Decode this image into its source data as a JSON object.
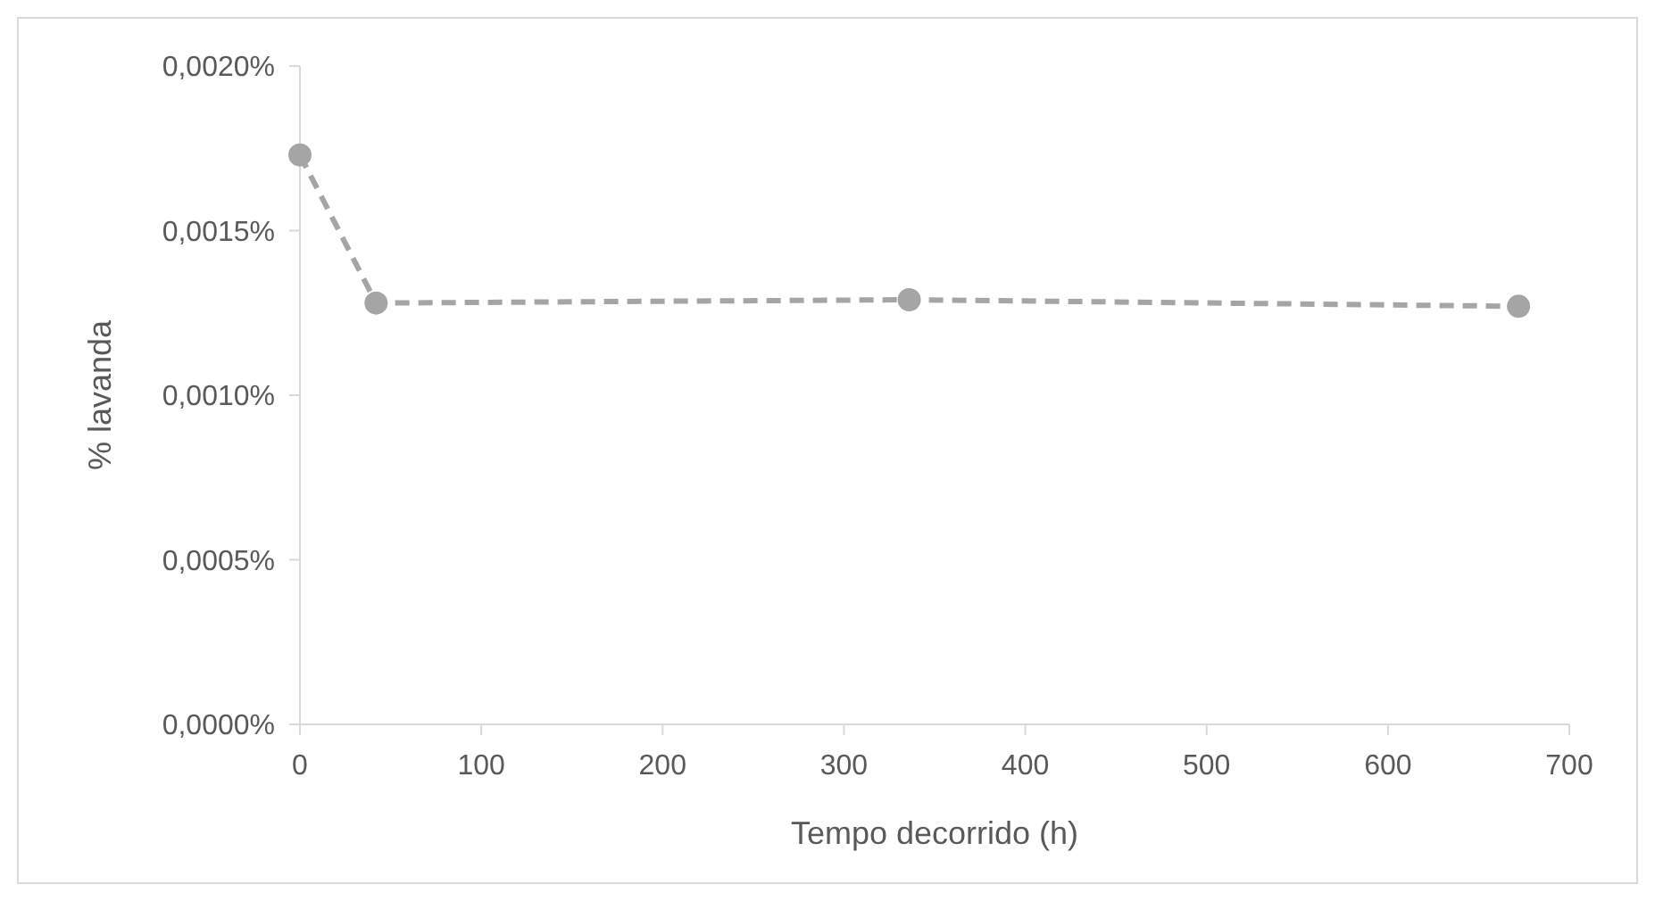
{
  "chart_data": {
    "type": "line",
    "xlabel": "Tempo decorrido (h)",
    "ylabel": "% lavanda",
    "x": [
      0,
      42,
      336,
      672
    ],
    "series": [
      {
        "color": "#a5a5a5",
        "values": [
          0.00173,
          0.00128,
          0.00129,
          0.00127
        ]
      }
    ],
    "xlim": [
      0,
      700
    ],
    "xticks": [
      0,
      100,
      200,
      300,
      400,
      500,
      600,
      700
    ],
    "ylim": [
      0,
      0.002
    ],
    "yticks": [
      {
        "value": 0,
        "label": "0,0000%"
      },
      {
        "value": 0.0005,
        "label": "0,0005%"
      },
      {
        "value": 0.001,
        "label": "0,0010%"
      },
      {
        "value": 0.0015,
        "label": "0,0015%"
      },
      {
        "value": 0.002,
        "label": "0,0020%"
      }
    ],
    "grid": false,
    "marker": "circle",
    "line_style": "dashed"
  }
}
